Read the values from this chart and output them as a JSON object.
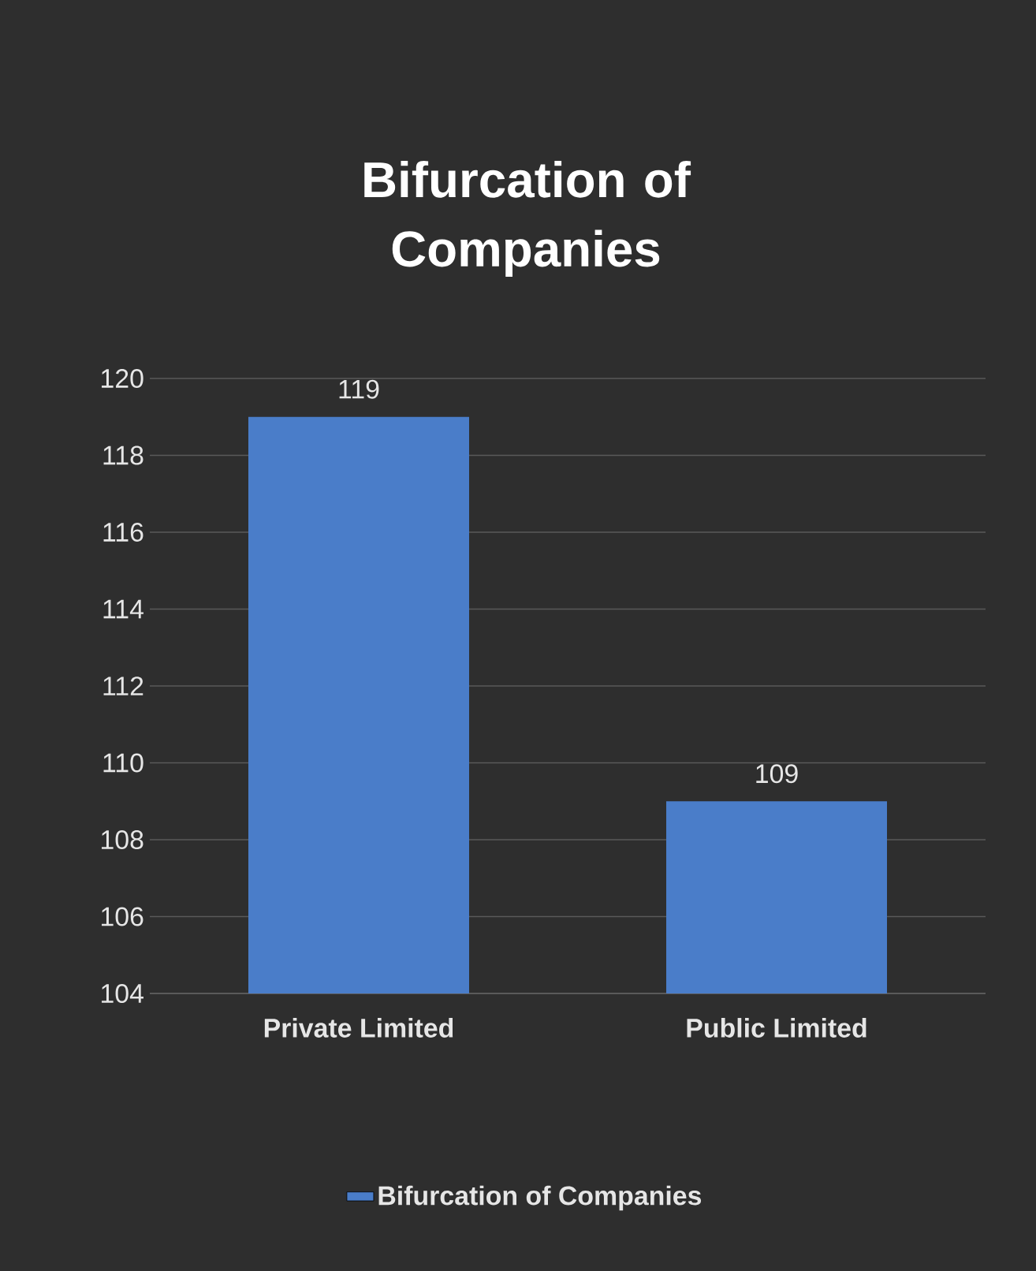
{
  "chart_data": {
    "type": "bar",
    "title": "Bifurcation of Companies",
    "categories": [
      "Private Limited",
      "Public Limited"
    ],
    "series": [
      {
        "name": "Bifurcation of Companies",
        "color": "#4a7dc9",
        "values": [
          119,
          109
        ]
      }
    ],
    "ylim": [
      104,
      120
    ],
    "yticks": [
      104,
      106,
      108,
      110,
      112,
      114,
      116,
      118,
      120
    ],
    "grid": "y",
    "legend": "bottom",
    "data_labels": true
  }
}
